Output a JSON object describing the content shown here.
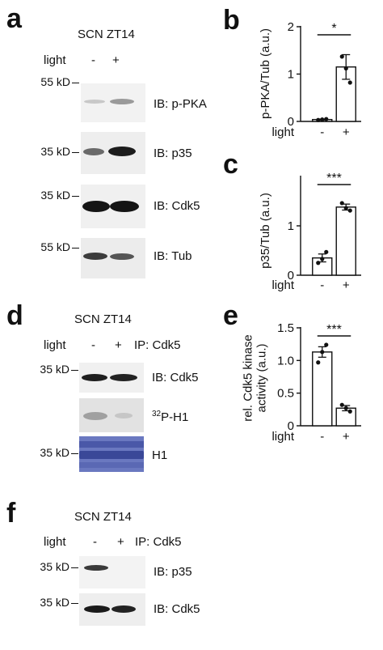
{
  "panels": {
    "a": {
      "label": "a",
      "title": "SCN ZT14",
      "light_label": "light",
      "conditions": [
        "-",
        "+"
      ],
      "blots": [
        {
          "mw": "55 kD",
          "ib": "IB: p-PKA"
        },
        {
          "mw": "35 kD",
          "ib": "IB: p35"
        },
        {
          "mw": "35 kD",
          "ib": "IB: Cdk5"
        },
        {
          "mw": "55 kD",
          "ib": "IB: Tub"
        }
      ]
    },
    "d": {
      "label": "d",
      "title": "SCN ZT14",
      "light_label": "light",
      "conditions": [
        "-",
        "+"
      ],
      "ip": "IP: Cdk5",
      "blots": [
        {
          "mw": "35 kD",
          "ib": "IB: Cdk5"
        },
        {
          "mw": "",
          "ib_sup": "32",
          "ib": "P-H1"
        },
        {
          "mw": "35 kD",
          "ib": "H1"
        }
      ]
    },
    "f": {
      "label": "f",
      "title": "SCN ZT14",
      "light_label": "light",
      "conditions": [
        "-",
        "+"
      ],
      "ip": "IP: Cdk5",
      "blots": [
        {
          "mw": "35 kD",
          "ib": "IB: p35"
        },
        {
          "mw": "35 kD",
          "ib": "IB: Cdk5"
        }
      ]
    }
  },
  "chart_data": [
    {
      "panel": "b",
      "type": "bar",
      "categories": [
        "-",
        "+"
      ],
      "values": [
        0.04,
        1.15
      ],
      "errors": [
        0.01,
        0.26
      ],
      "points": [
        [
          0.03,
          0.04,
          0.05
        ],
        [
          0.82,
          1.12,
          1.37
        ]
      ],
      "ylabel": "p-PKA/Tub (a.u.)",
      "xlabel": "light",
      "ylim": [
        0,
        2
      ],
      "yticks": [
        0,
        1,
        2
      ],
      "significance": "*"
    },
    {
      "panel": "c",
      "type": "bar",
      "categories": [
        "-",
        "+"
      ],
      "values": [
        0.35,
        1.38
      ],
      "errors": [
        0.08,
        0.06
      ],
      "points": [
        [
          0.25,
          0.33,
          0.47
        ],
        [
          1.31,
          1.36,
          1.46
        ]
      ],
      "ylabel": "p35/Tub (a.u.)",
      "xlabel": "light",
      "ylim": [
        0,
        2
      ],
      "yticks": [
        0,
        1
      ],
      "significance": "***"
    },
    {
      "panel": "e",
      "type": "bar",
      "categories": [
        "-",
        "+"
      ],
      "values": [
        1.13,
        0.27
      ],
      "errors": [
        0.08,
        0.04
      ],
      "points": [
        [
          0.97,
          1.13,
          1.24
        ],
        [
          0.22,
          0.27,
          0.32
        ]
      ],
      "ylabel": "rel. Cdk5 kinase activity (a.u.)",
      "ylabel_lines": [
        "rel. Cdk5 kinase",
        "activity (a.u.)"
      ],
      "xlabel": "light",
      "ylim": [
        0,
        1.5
      ],
      "yticks": [
        0,
        0.5,
        1.0,
        1.5
      ],
      "ytick_labels": [
        "0",
        "0.5",
        "1.0",
        "1.5"
      ],
      "significance": "***"
    }
  ]
}
